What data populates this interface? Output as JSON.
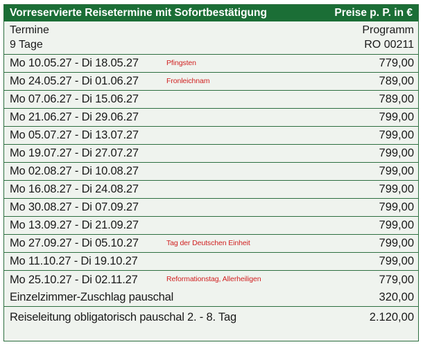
{
  "header": {
    "title": "Vorreservierte Reisetermine mit Sofortbestätigung",
    "price_label": "Preise p. P. in €"
  },
  "subheader": {
    "col1_label": "Termine",
    "col1_value": "9 Tage",
    "col2_label": "Programm",
    "col2_value": "RO 00211"
  },
  "rows": [
    {
      "date": "Mo 10.05.27 - Di 18.05.27",
      "note": "Pfingsten",
      "price": "779,00"
    },
    {
      "date": "Mo 24.05.27 - Di 01.06.27",
      "note": "Fronleichnam",
      "price": "789,00"
    },
    {
      "date": "Mo 07.06.27 - Di 15.06.27",
      "note": "",
      "price": "789,00"
    },
    {
      "date": "Mo 21.06.27 - Di 29.06.27",
      "note": "",
      "price": "799,00"
    },
    {
      "date": "Mo 05.07.27 - Di 13.07.27",
      "note": "",
      "price": "799,00"
    },
    {
      "date": "Mo 19.07.27 - Di 27.07.27",
      "note": "",
      "price": "799,00"
    },
    {
      "date": "Mo 02.08.27 - Di 10.08.27",
      "note": "",
      "price": "799,00"
    },
    {
      "date": "Mo 16.08.27 - Di 24.08.27",
      "note": "",
      "price": "799,00"
    },
    {
      "date": "Mo 30.08.27 - Di 07.09.27",
      "note": "",
      "price": "799,00"
    },
    {
      "date": "Mo 13.09.27 - Di 21.09.27",
      "note": "",
      "price": "799,00"
    },
    {
      "date": "Mo 27.09.27 - Di 05.10.27",
      "note": "Tag der Deutschen Einheit",
      "price": "799,00"
    },
    {
      "date": "Mo 11.10.27 - Di 19.10.27",
      "note": "",
      "price": "799,00"
    },
    {
      "date": "Mo 25.10.27 - Di 02.11.27",
      "note": "Reformationstag, Allerheiligen",
      "price": "779,00"
    }
  ],
  "extras": [
    {
      "label": "Einzelzimmer-Zuschlag pauschal",
      "price": "320,00"
    },
    {
      "label": "Reiseleitung obligatorisch pauschal 2. - 8. Tag",
      "price": "2.120,00"
    }
  ],
  "colors": {
    "header_bg": "#1b6e36",
    "note_red": "#d01f1f",
    "table_bg": "#eff3ee"
  }
}
